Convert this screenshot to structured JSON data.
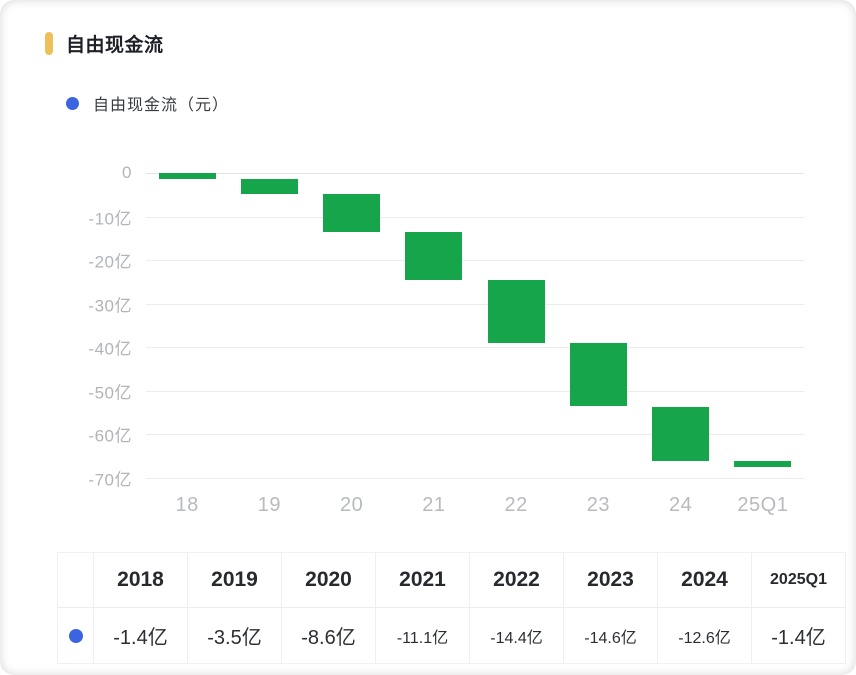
{
  "header": {
    "title": "自由现金流"
  },
  "legend": {
    "label": "自由现金流（元）"
  },
  "colors": {
    "accent_yellow": "#EEC05A",
    "series_blue": "#3C64E1",
    "bar_green": "#17A54C",
    "grid_line": "#ECECEC",
    "axis_text": "#B3B6BB"
  },
  "chart_data": {
    "type": "bar",
    "subtype": "waterfall",
    "title": "自由现金流",
    "series_name": "自由现金流（元）",
    "unit": "亿",
    "categories": [
      "18",
      "19",
      "20",
      "21",
      "22",
      "23",
      "24",
      "25Q1"
    ],
    "values": [
      -1.4,
      -3.5,
      -8.6,
      -11.1,
      -14.4,
      -14.6,
      -12.6,
      -1.4
    ],
    "cumulative_end": [
      -1.4,
      -4.9,
      -13.5,
      -24.6,
      -39.0,
      -53.6,
      -66.2,
      -67.6
    ],
    "yticks": [
      {
        "value": 0,
        "label": "0"
      },
      {
        "value": -10,
        "label": "-10亿"
      },
      {
        "value": -20,
        "label": "-20亿"
      },
      {
        "value": -30,
        "label": "-30亿"
      },
      {
        "value": -40,
        "label": "-40亿"
      },
      {
        "value": -50,
        "label": "-50亿"
      },
      {
        "value": -60,
        "label": "-60亿"
      },
      {
        "value": -70,
        "label": "-70亿"
      }
    ],
    "ylim": [
      0,
      -70
    ],
    "grid": true,
    "legend_position": "top-left"
  },
  "table": {
    "headers": [
      "2018",
      "2019",
      "2020",
      "2021",
      "2022",
      "2023",
      "2024",
      "2025Q1"
    ],
    "rows": [
      {
        "icon": "blue-dot",
        "values": [
          "-1.4亿",
          "-3.5亿",
          "-8.6亿",
          "-11.1亿",
          "-14.4亿",
          "-14.6亿",
          "-12.6亿",
          "-1.4亿"
        ]
      }
    ]
  }
}
